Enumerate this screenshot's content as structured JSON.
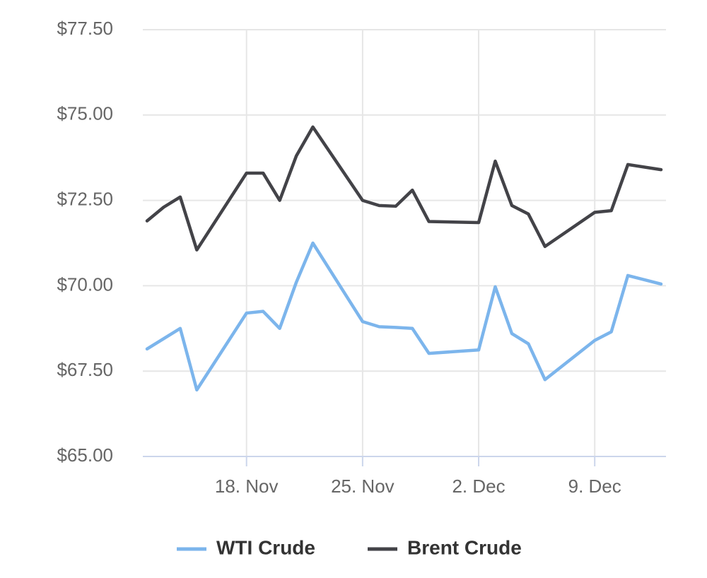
{
  "chart_data": {
    "type": "line",
    "x": [
      "12. Nov",
      "13. Nov",
      "14. Nov",
      "15. Nov",
      "18. Nov",
      "19. Nov",
      "20. Nov",
      "21. Nov",
      "22. Nov",
      "25. Nov",
      "26. Nov",
      "27. Nov",
      "28. Nov",
      "29. Nov",
      "2. Dec",
      "3. Dec",
      "4. Dec",
      "5. Dec",
      "6. Dec",
      "9. Dec",
      "10. Dec",
      "11. Dec",
      "13. Dec"
    ],
    "series": [
      {
        "name": "WTI Crude",
        "color": "#7cb5ec",
        "values": [
          68.15,
          68.45,
          68.75,
          66.95,
          69.2,
          69.25,
          68.75,
          70.1,
          71.25,
          68.95,
          68.8,
          68.78,
          68.75,
          68.02,
          68.12,
          69.97,
          68.6,
          68.3,
          67.25,
          68.4,
          68.65,
          70.3,
          70.05
        ]
      },
      {
        "name": "Brent Crude",
        "color": "#434348",
        "values": [
          71.9,
          72.3,
          72.6,
          71.05,
          73.3,
          73.3,
          72.5,
          73.8,
          74.65,
          72.5,
          72.35,
          72.33,
          72.8,
          71.88,
          71.85,
          73.65,
          72.35,
          72.1,
          71.15,
          72.15,
          72.2,
          73.55,
          73.4
        ]
      }
    ],
    "xlim": [
      "12. Nov",
      "13. Dec"
    ],
    "xticks": [
      "18. Nov",
      "25. Nov",
      "2. Dec",
      "9. Dec"
    ],
    "ylim": [
      65,
      77.5
    ],
    "yticks": [
      {
        "value": 65,
        "label": "$65.00"
      },
      {
        "value": 67.5,
        "label": "$67.50"
      },
      {
        "value": 70,
        "label": "$70.00"
      },
      {
        "value": 72.5,
        "label": "$72.50"
      },
      {
        "value": 75,
        "label": "$75.00"
      },
      {
        "value": 77.5,
        "label": "$77.50"
      }
    ],
    "grid": true,
    "legend": "bottom"
  }
}
